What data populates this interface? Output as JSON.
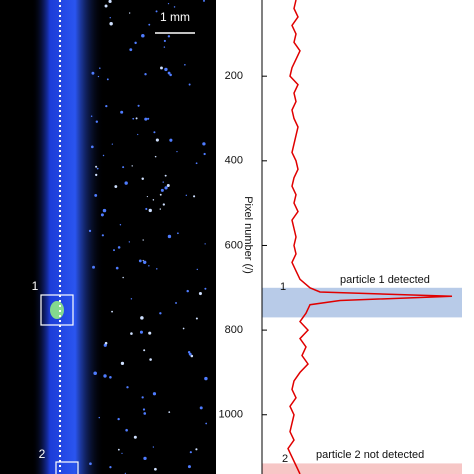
{
  "chart_data": {
    "type": "line",
    "orientation": "vertical",
    "x_label": "Pixel number (/)",
    "x": [
      20,
      40,
      60,
      80,
      100,
      120,
      140,
      160,
      180,
      200,
      220,
      240,
      260,
      280,
      300,
      320,
      340,
      360,
      380,
      400,
      420,
      440,
      460,
      480,
      500,
      520,
      540,
      560,
      580,
      600,
      620,
      640,
      660,
      680,
      700,
      710,
      720,
      730,
      740,
      760,
      780,
      800,
      820,
      840,
      860,
      880,
      900,
      920,
      940,
      960,
      980,
      1000,
      1020,
      1040,
      1060,
      1080,
      1100,
      1120,
      1140
    ],
    "xlim": [
      20,
      1140
    ],
    "xticks": [
      200,
      400,
      600,
      800,
      1000
    ],
    "series": [
      {
        "color": "#e00000",
        "values": [
          17,
          16,
          18,
          15,
          17,
          16,
          19,
          17,
          15,
          14,
          18,
          16,
          17,
          15,
          16,
          18,
          17,
          16,
          15,
          17,
          18,
          16,
          15,
          17,
          16,
          18,
          15,
          16,
          17,
          16,
          17,
          15,
          17,
          19,
          24,
          29,
          95,
          39,
          24,
          22,
          19,
          23,
          19,
          22,
          20,
          23,
          19,
          16,
          15,
          17,
          14,
          16,
          15,
          14,
          16,
          13,
          15,
          17,
          19
        ]
      }
    ],
    "ylim": [
      0,
      100
    ],
    "image_labels": {
      "scale": "1 mm",
      "box1": "1",
      "box2": "2"
    },
    "annotations": [
      {
        "label": "1",
        "text": "particle 1 detected",
        "color": "#b8cbe8",
        "range": [
          700,
          770
        ]
      },
      {
        "label": "2",
        "text": "particle 2 not detected",
        "color": "#f7c6c6",
        "range": [
          1115,
          1140
        ]
      }
    ]
  }
}
